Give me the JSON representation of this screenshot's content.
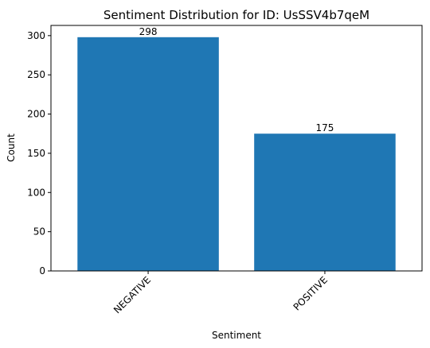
{
  "chart_data": {
    "type": "bar",
    "title": "Sentiment Distribution for ID: UsSSV4b7qeM",
    "xlabel": "Sentiment",
    "ylabel": "Count",
    "categories": [
      "NEGATIVE",
      "POSITIVE"
    ],
    "values": [
      298,
      175
    ],
    "data_labels": [
      "298",
      "175"
    ],
    "ylim": [
      0,
      313
    ],
    "yticks": [
      0,
      50,
      100,
      150,
      200,
      250,
      300
    ],
    "ytick_labels": [
      "0",
      "50",
      "100",
      "150",
      "200",
      "250",
      "300"
    ],
    "bar_color": "#1f77b4",
    "grid": false,
    "legend": false
  }
}
